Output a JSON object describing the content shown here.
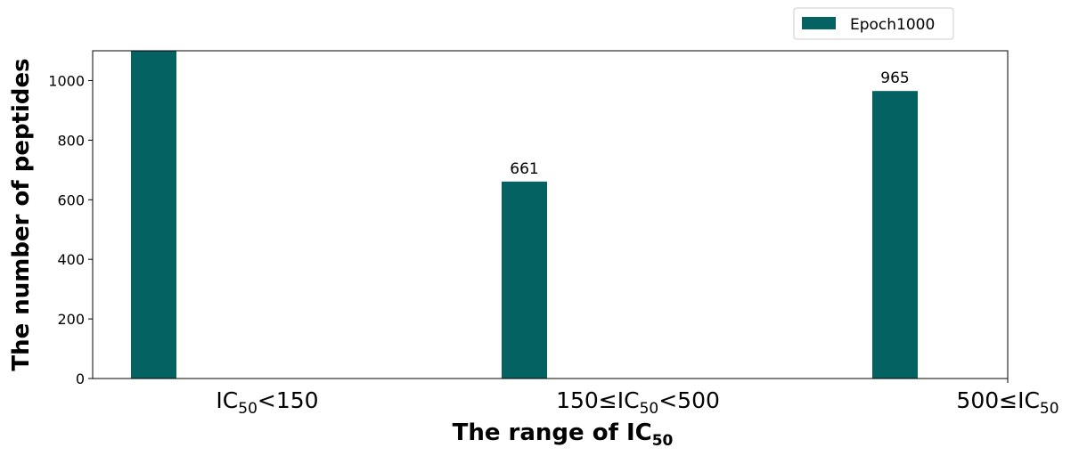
{
  "chart_data": {
    "type": "bar",
    "categories": [
      {
        "base": "IC",
        "sub": "50",
        "prefix": "",
        "suffix": "<150"
      },
      {
        "base": "IC",
        "sub": "50",
        "prefix": "150≤",
        "suffix": "<500"
      },
      {
        "base": "IC",
        "sub": "50",
        "prefix": "500≤",
        "suffix": ""
      }
    ],
    "series": [
      {
        "name": "Epoch1000",
        "values": [
          1100,
          661,
          965
        ],
        "labels": [
          "",
          "661",
          "965"
        ],
        "color": "#056262"
      }
    ],
    "title": "",
    "xlabel": {
      "text": "The range of IC",
      "sub": "50"
    },
    "ylabel": "The number of peptides",
    "ylim": [
      0,
      1100
    ],
    "yticks": [
      0,
      200,
      400,
      600,
      800,
      1000
    ],
    "grid": false,
    "legend_position": "top-right, above plot"
  }
}
